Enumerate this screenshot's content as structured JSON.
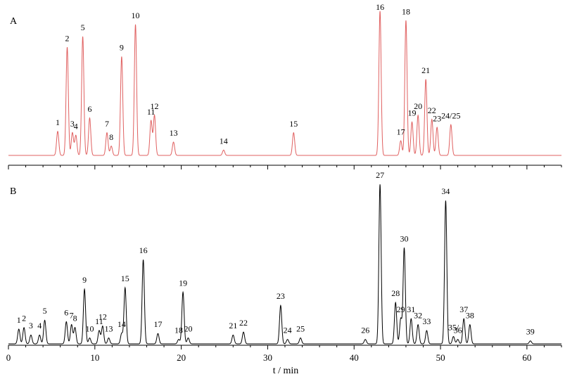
{
  "chart_data": [
    {
      "type": "line",
      "panel_label": "A",
      "color": "#e06060",
      "x_range": [
        0,
        64
      ],
      "baseline": 0.02,
      "peaks": [
        {
          "label": "1",
          "t": 5.7,
          "h": 0.18
        },
        {
          "label": "2",
          "t": 6.8,
          "h": 0.81
        },
        {
          "label": "3",
          "t": 7.4,
          "h": 0.17
        },
        {
          "label": "4",
          "t": 7.8,
          "h": 0.15
        },
        {
          "label": "5",
          "t": 8.6,
          "h": 0.89
        },
        {
          "label": "6",
          "t": 9.4,
          "h": 0.28
        },
        {
          "label": "7",
          "t": 11.4,
          "h": 0.17
        },
        {
          "label": "8",
          "t": 11.9,
          "h": 0.07
        },
        {
          "label": "9",
          "t": 13.1,
          "h": 0.74
        },
        {
          "label": "10",
          "t": 14.7,
          "h": 0.98
        },
        {
          "label": "11",
          "t": 16.5,
          "h": 0.26
        },
        {
          "label": "12",
          "t": 16.9,
          "h": 0.3
        },
        {
          "label": "13",
          "t": 19.1,
          "h": 0.1
        },
        {
          "label": "14",
          "t": 24.9,
          "h": 0.04
        },
        {
          "label": "15",
          "t": 33.0,
          "h": 0.17
        },
        {
          "label": "16",
          "t": 43.0,
          "h": 1.08
        },
        {
          "label": "17",
          "t": 45.4,
          "h": 0.11
        },
        {
          "label": "18",
          "t": 46.0,
          "h": 1.01
        },
        {
          "label": "19",
          "t": 46.7,
          "h": 0.25
        },
        {
          "label": "20",
          "t": 47.4,
          "h": 0.3
        },
        {
          "label": "21",
          "t": 48.3,
          "h": 0.57
        },
        {
          "label": "22",
          "t": 49.0,
          "h": 0.27
        },
        {
          "label": "23",
          "t": 49.6,
          "h": 0.21
        },
        {
          "label": "24/25",
          "t": 51.2,
          "h": 0.23
        }
      ]
    },
    {
      "type": "line",
      "panel_label": "B",
      "color": "#000000",
      "x_label": "t / min",
      "x_ticks": [
        0,
        10,
        20,
        30,
        40,
        50,
        60
      ],
      "x_range": [
        0,
        64
      ],
      "baseline": 0.02,
      "peaks": [
        {
          "label": "1",
          "t": 1.2,
          "h": 0.1
        },
        {
          "label": "2",
          "t": 1.8,
          "h": 0.11
        },
        {
          "label": "3",
          "t": 2.6,
          "h": 0.06
        },
        {
          "label": "4",
          "t": 3.6,
          "h": 0.06
        },
        {
          "label": "5",
          "t": 4.2,
          "h": 0.16
        },
        {
          "label": "6",
          "t": 6.7,
          "h": 0.15
        },
        {
          "label": "7",
          "t": 7.3,
          "h": 0.13
        },
        {
          "label": "8",
          "t": 7.7,
          "h": 0.11
        },
        {
          "label": "9",
          "t": 8.8,
          "h": 0.37
        },
        {
          "label": "10",
          "t": 9.4,
          "h": 0.04
        },
        {
          "label": "11",
          "t": 10.5,
          "h": 0.09
        },
        {
          "label": "12",
          "t": 10.9,
          "h": 0.12
        },
        {
          "label": "13",
          "t": 11.6,
          "h": 0.04
        },
        {
          "label": "14",
          "t": 13.1,
          "h": 0.07
        },
        {
          "label": "15",
          "t": 13.5,
          "h": 0.38
        },
        {
          "label": "16",
          "t": 15.6,
          "h": 0.57
        },
        {
          "label": "17",
          "t": 17.3,
          "h": 0.07
        },
        {
          "label": "18",
          "t": 19.7,
          "h": 0.03
        },
        {
          "label": "19",
          "t": 20.2,
          "h": 0.35
        },
        {
          "label": "20",
          "t": 20.8,
          "h": 0.04
        },
        {
          "label": "21",
          "t": 26.0,
          "h": 0.06
        },
        {
          "label": "22",
          "t": 27.2,
          "h": 0.08
        },
        {
          "label": "23",
          "t": 31.5,
          "h": 0.26
        },
        {
          "label": "24",
          "t": 32.3,
          "h": 0.03
        },
        {
          "label": "25",
          "t": 33.8,
          "h": 0.04
        },
        {
          "label": "26",
          "t": 41.3,
          "h": 0.03
        },
        {
          "label": "27",
          "t": 43.0,
          "h": 1.08
        },
        {
          "label": "28",
          "t": 44.8,
          "h": 0.28
        },
        {
          "label": "29",
          "t": 45.4,
          "h": 0.17
        },
        {
          "label": "30",
          "t": 45.8,
          "h": 0.65
        },
        {
          "label": "31",
          "t": 46.6,
          "h": 0.17
        },
        {
          "label": "32",
          "t": 47.4,
          "h": 0.13
        },
        {
          "label": "33",
          "t": 48.4,
          "h": 0.09
        },
        {
          "label": "34",
          "t": 50.6,
          "h": 0.97
        },
        {
          "label": "35/",
          "t": 51.5,
          "h": 0.05
        },
        {
          "label": "36",
          "t": 52.0,
          "h": 0.03
        },
        {
          "label": "37",
          "t": 52.7,
          "h": 0.17
        },
        {
          "label": "38",
          "t": 53.4,
          "h": 0.13
        },
        {
          "label": "39",
          "t": 60.4,
          "h": 0.02
        }
      ]
    }
  ]
}
